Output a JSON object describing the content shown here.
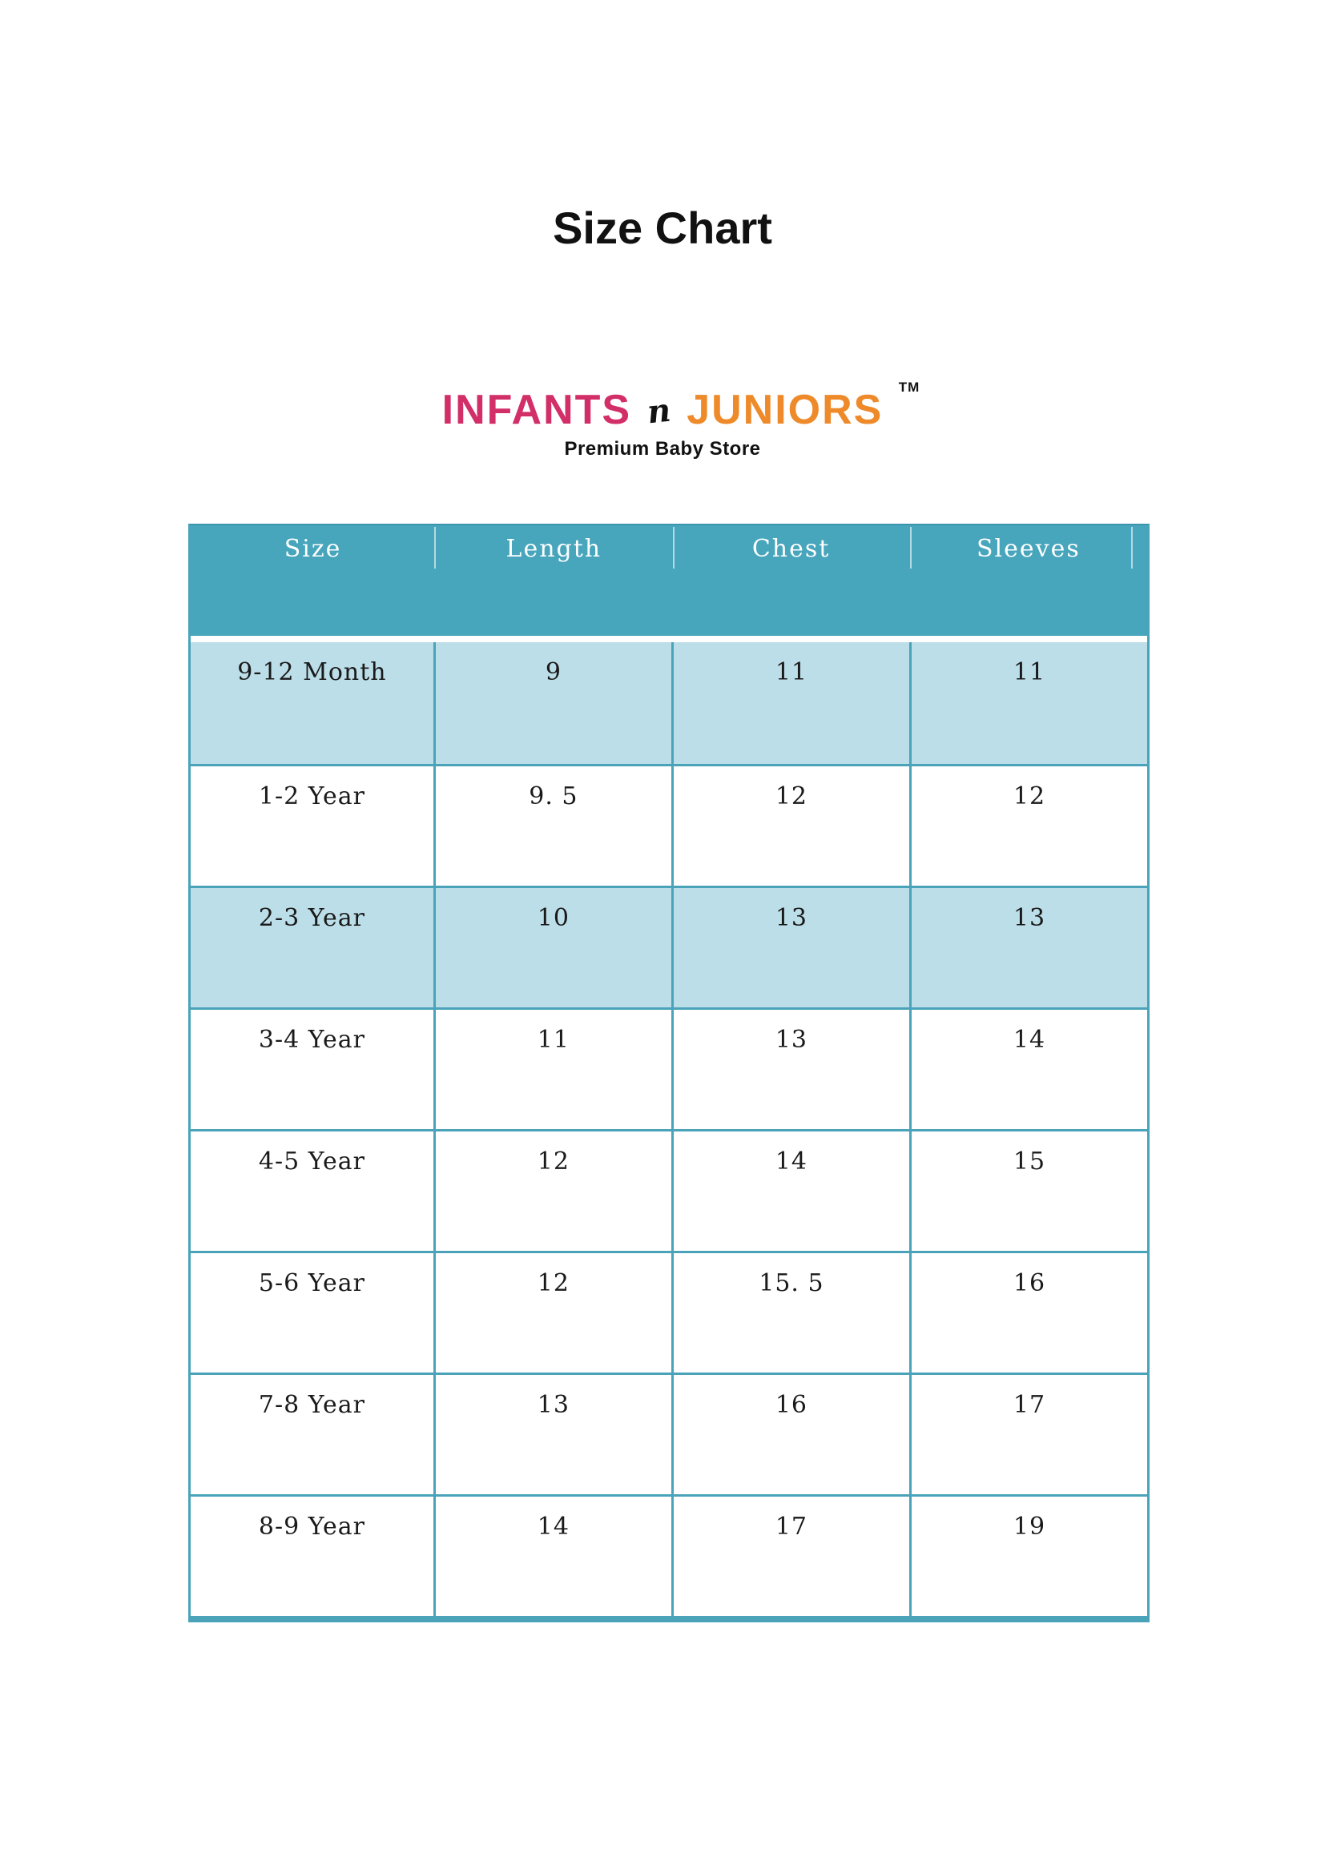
{
  "page": {
    "title": "Size Chart"
  },
  "logo": {
    "part_infants": "INFANTS",
    "part_n": "n",
    "part_juniors": "JUNIORS",
    "trademark": "TM",
    "tagline": "Premium Baby Store"
  },
  "table": {
    "headers": [
      "Size",
      "Length",
      "Chest",
      "Sleeves"
    ],
    "rows": [
      {
        "size": "9-12 Month",
        "length": "9",
        "chest": "11",
        "sleeves": "11"
      },
      {
        "size": "1-2 Year",
        "length": "9. 5",
        "chest": "12",
        "sleeves": "12"
      },
      {
        "size": "2-3 Year",
        "length": "10",
        "chest": "13",
        "sleeves": "13"
      },
      {
        "size": "3-4 Year",
        "length": "11",
        "chest": "13",
        "sleeves": "14"
      },
      {
        "size": "4-5 Year",
        "length": "12",
        "chest": "14",
        "sleeves": "15"
      },
      {
        "size": "5-6 Year",
        "length": "12",
        "chest": "15. 5",
        "sleeves": "16"
      },
      {
        "size": "7-8 Year",
        "length": "13",
        "chest": "16",
        "sleeves": "17"
      },
      {
        "size": "8-9 Year",
        "length": "14",
        "chest": "17",
        "sleeves": "19"
      }
    ]
  },
  "theme": {
    "header_bg": "#47a5bc",
    "header_text": "#ffffff",
    "row_highlight_bg": "#bcdee8",
    "grid_border": "#4ba3ba",
    "logo_pink": "#d22e68",
    "logo_orange": "#ee8a2a",
    "text_black": "#1a1a1a"
  }
}
